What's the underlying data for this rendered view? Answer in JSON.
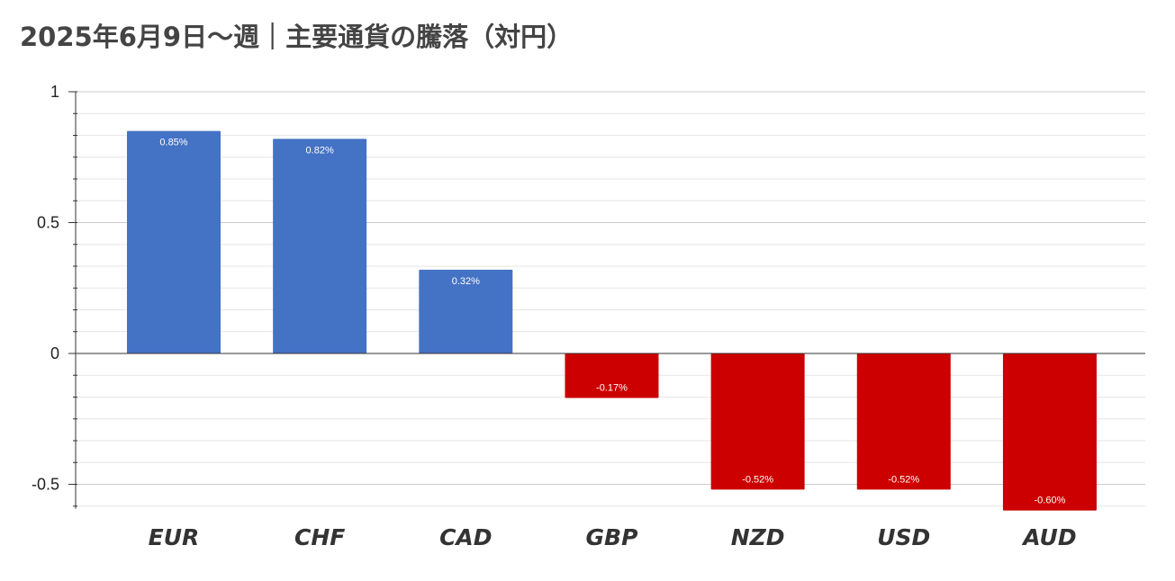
{
  "title": "2025年6月9日～週｜主要通貨の騰落（対円）",
  "chart_data": {
    "type": "bar",
    "title": "2025年6月9日～週｜主要通貨の騰落（対円）",
    "categories": [
      "EUR",
      "CHF",
      "CAD",
      "GBP",
      "NZD",
      "USD",
      "AUD"
    ],
    "values": [
      0.85,
      0.82,
      0.32,
      -0.17,
      -0.52,
      -0.52,
      -0.6
    ],
    "data_labels": [
      "0.85%",
      "0.82%",
      "0.32%",
      "-0.17%",
      "-0.52%",
      "-0.52%",
      "-0.60%"
    ],
    "ylim": [
      -0.6,
      1.0
    ],
    "yticks": [
      1,
      0.5,
      0,
      -0.5
    ],
    "ytick_labels": [
      "1",
      "0.5",
      "0",
      "-0.5"
    ],
    "minor_grid_step": 0.083333,
    "grid": true,
    "legend": "none",
    "colors": {
      "positive": "#4472c4",
      "negative": "#cc0000"
    }
  }
}
